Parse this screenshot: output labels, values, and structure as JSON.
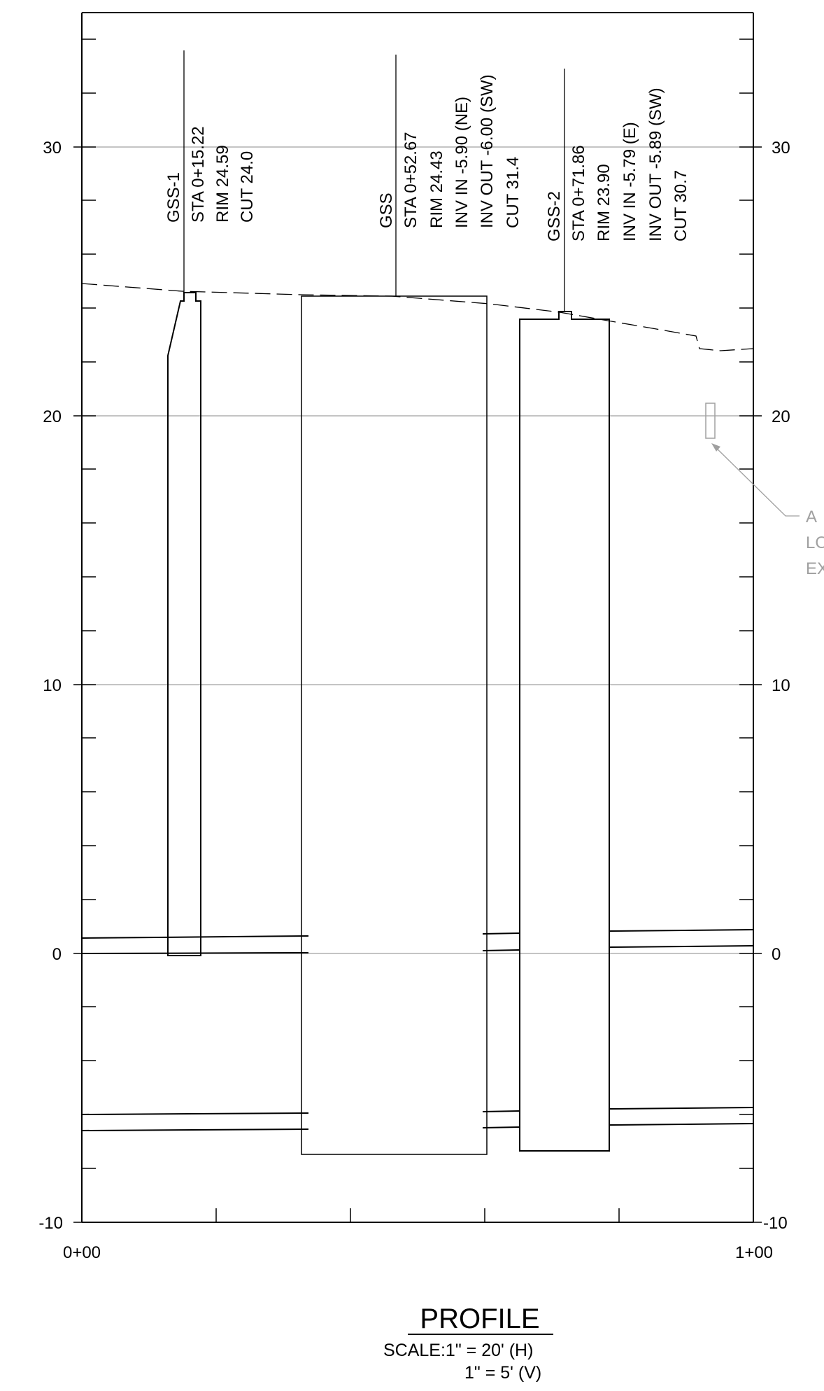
{
  "sheet": {
    "title": "PROFILE",
    "scale_horizontal": "SCALE:1\" = 20' (H)",
    "scale_vertical": "1\" = 5' (V)"
  },
  "axes": {
    "y_ticks_left": [
      "30",
      "20",
      "10",
      "0",
      "-10"
    ],
    "y_ticks_right": [
      "30",
      "20",
      "10",
      "0",
      "-10"
    ],
    "x_start": "0+00",
    "x_end": "1+00"
  },
  "structures": [
    {
      "name": "GSS-1",
      "lines": [
        "GSS-1",
        "STA 0+15.22",
        "RIM 24.59",
        "CUT 24.0"
      ]
    },
    {
      "name": "GSS",
      "lines": [
        "GSS",
        "STA 0+52.67",
        "RIM 24.43",
        "INV IN -5.90 (NE)",
        "INV OUT -6.00 (SW)",
        "CUT 31.4"
      ]
    },
    {
      "name": "GSS-2",
      "lines": [
        "GSS-2",
        "STA 0+71.86",
        "RIM 23.90",
        "INV IN -5.79 (E)",
        "INV OUT -5.89 (SW)",
        "CUT 30.7"
      ]
    }
  ],
  "callout": {
    "lines": [
      "A",
      "LO",
      "EX"
    ],
    "color": "#a0a0a0"
  },
  "colors": {
    "line": "#000000",
    "grid": "#a0a0a0"
  }
}
